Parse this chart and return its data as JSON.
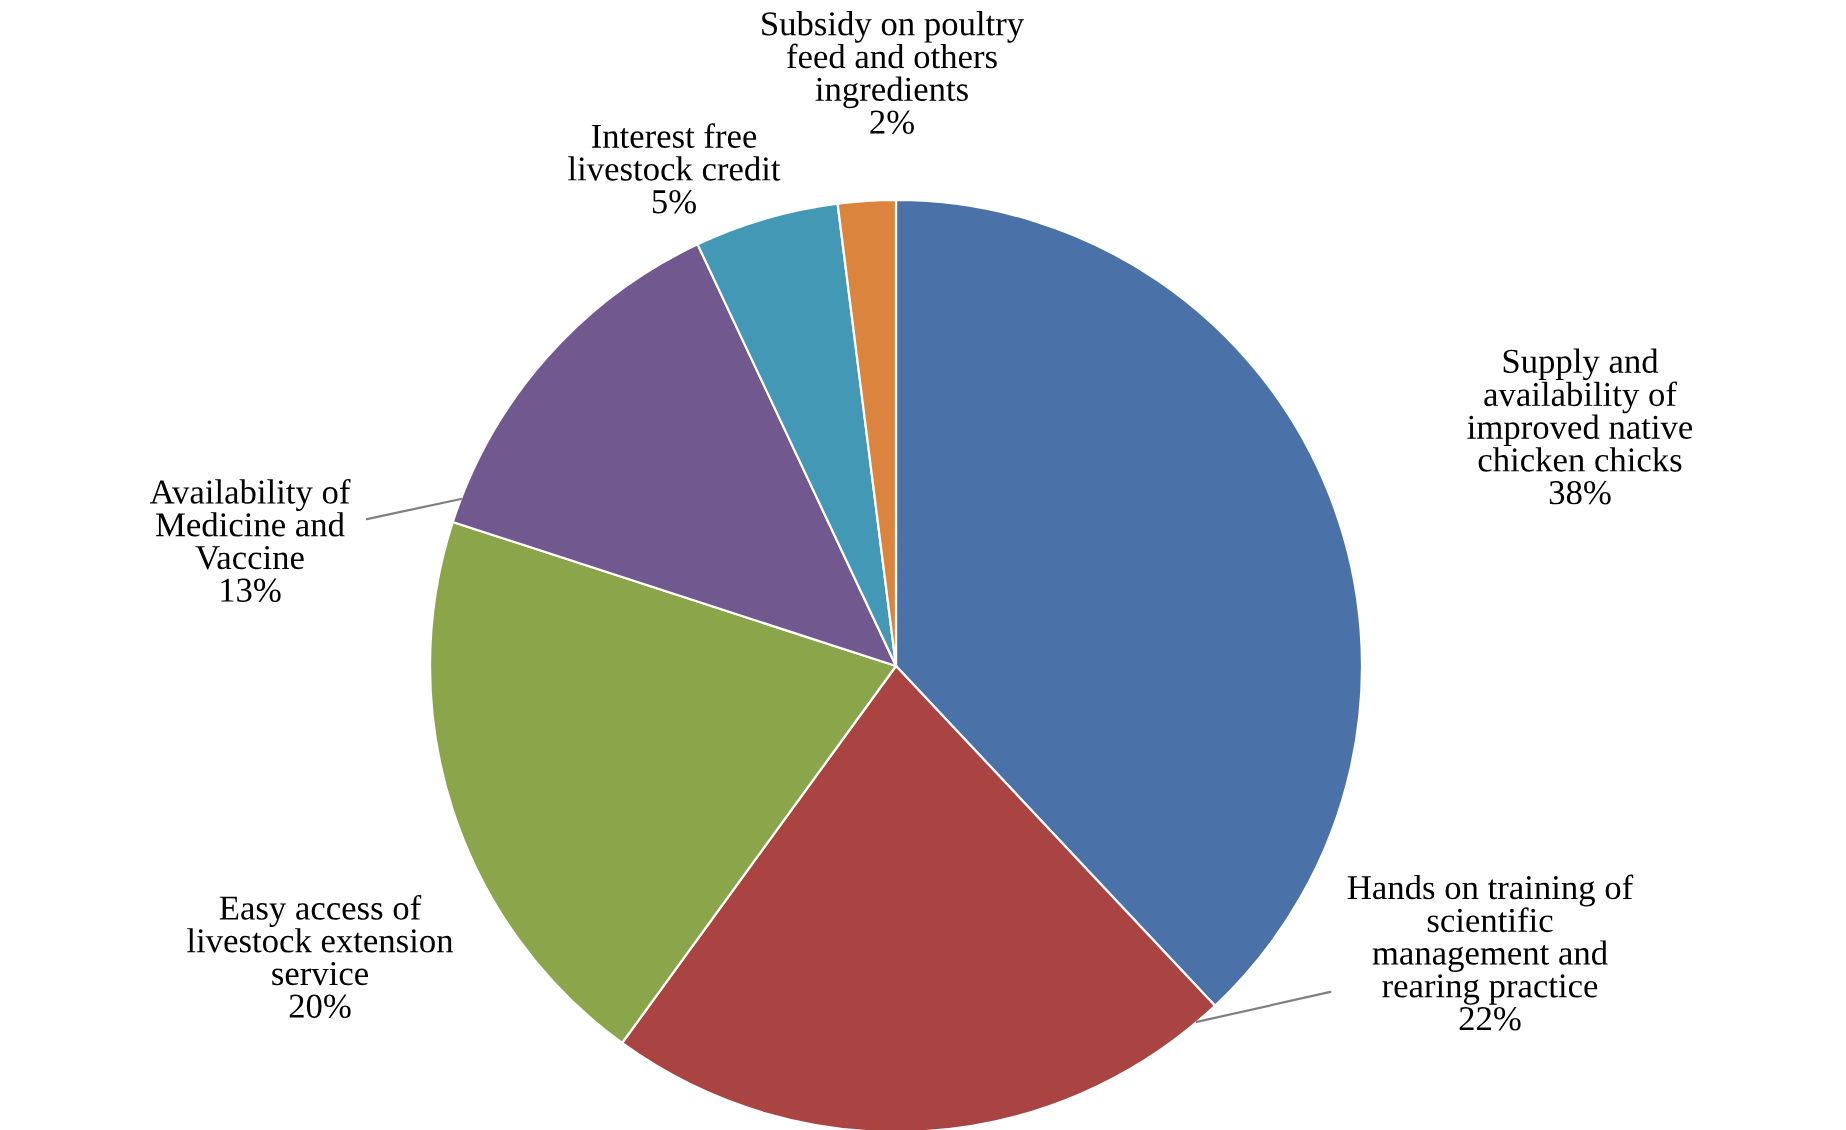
{
  "chart_data": {
    "type": "pie",
    "categories": [
      "Supply and\navailability of\nimproved native\nchicken chicks",
      "Hands on training of\nscientific\nmanagement and\nrearing practice",
      "Easy access of\nlivestock extension\nservice",
      "Availability of\nMedicine and\nVaccine",
      "Interest free\nlivestock credit",
      "Subsidy on poultry\nfeed and others\ningredients"
    ],
    "values": [
      38,
      22,
      20,
      13,
      5,
      2
    ],
    "colors": [
      "#4a72a8",
      "#a94442",
      "#8ba54b",
      "#71588f",
      "#4298b5",
      "#db843d"
    ],
    "value_labels": [
      "38%",
      "22%",
      "20%",
      "13%",
      "5%",
      "2%"
    ],
    "legend": false
  }
}
